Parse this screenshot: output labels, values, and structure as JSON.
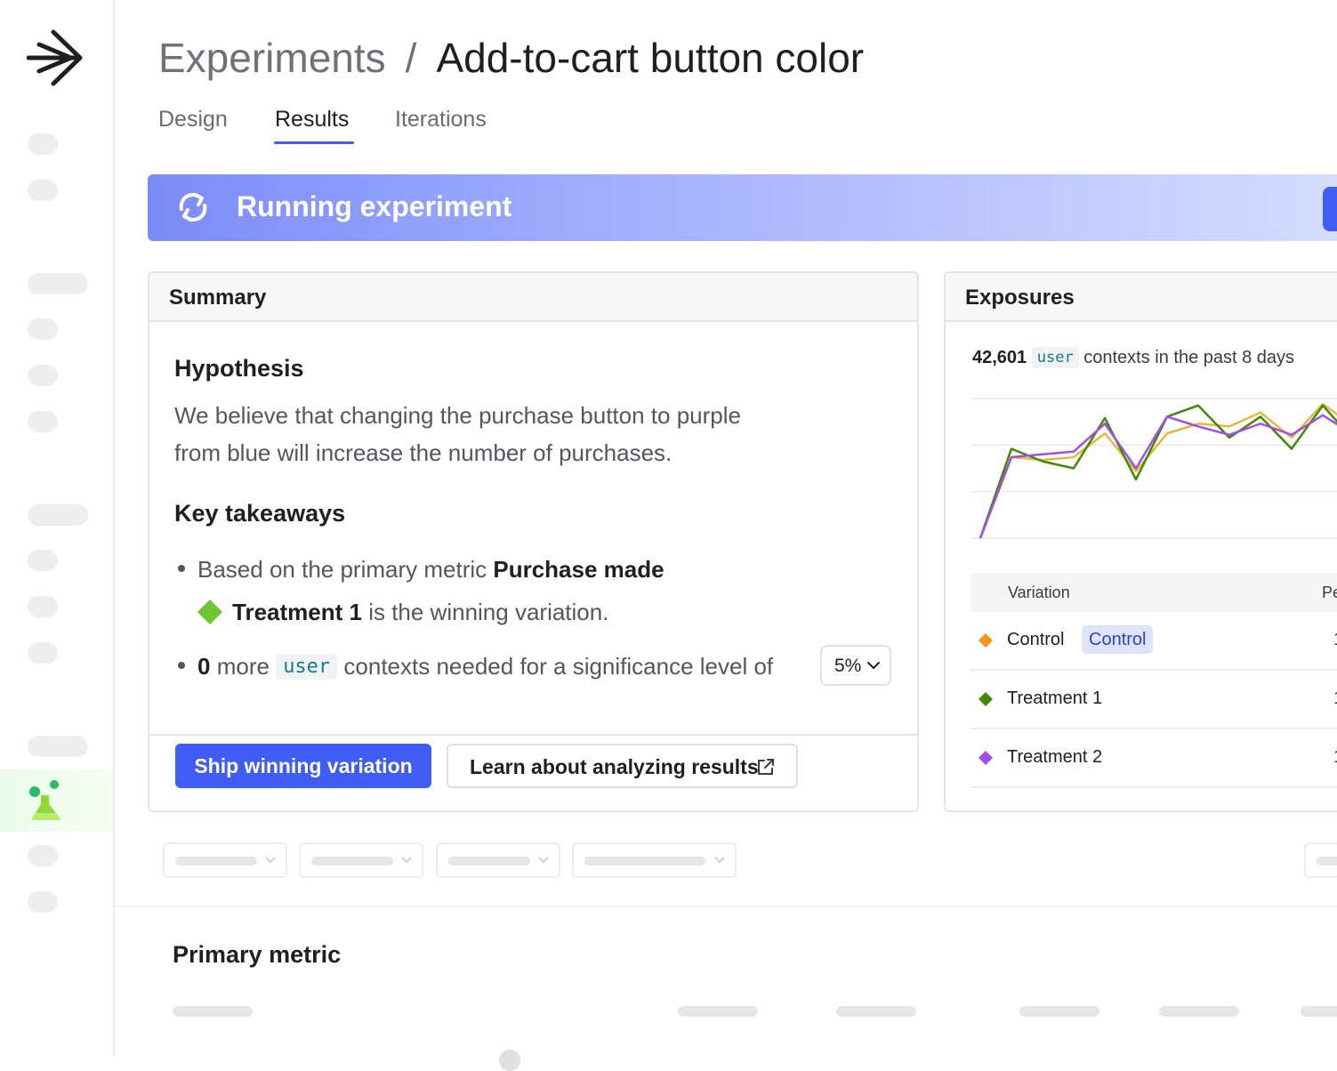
{
  "page": {
    "breadcrumb": {
      "parent": "Experiments",
      "separator": "/",
      "current": "Add-to-cart button color"
    },
    "tabs": [
      {
        "label": "Design",
        "active": false
      },
      {
        "label": "Results",
        "active": true
      },
      {
        "label": "Iterations",
        "active": false
      }
    ],
    "status_banner": {
      "title": "Running experiment",
      "icon": "sync-icon"
    }
  },
  "summary": {
    "title": "Summary",
    "hypothesis_heading": "Hypothesis",
    "hypothesis_line1": "We believe that changing the purchase button to purple",
    "hypothesis_line2": "from blue will increase the number of purchases.",
    "takeaways_heading": "Key takeaways",
    "takeaway1_prefix": "Based on the primary metric",
    "takeaway1_metric": "Purchase made",
    "takeaway1_variation": "Treatment 1",
    "takeaway1_suffix": "is the winning variation.",
    "takeaway2_count": "0",
    "takeaway2_more": "more",
    "takeaway2_context": "user",
    "takeaway2_suffix": "contexts needed for a significance level of",
    "significance_level": "5%",
    "ship_button": "Ship winning variation",
    "learn_button": "Learn about analyzing results"
  },
  "exposures": {
    "title": "Exposures",
    "count": "42,601",
    "context_kind": "user",
    "period_text": "contexts in the past 8 days",
    "table_headers": [
      "Variation",
      "Pe"
    ],
    "variations": [
      {
        "name": "Control",
        "badge": "Control",
        "color": "#f7951c",
        "value_truncated": "1"
      },
      {
        "name": "Treatment 1",
        "badge": "",
        "color": "#3f8a06",
        "value_truncated": "1"
      },
      {
        "name": "Treatment 2",
        "badge": "",
        "color": "#a24ee5",
        "value_truncated": "1"
      }
    ]
  },
  "chart_data": {
    "type": "line",
    "title": "",
    "xlabel": "",
    "ylabel": "",
    "grid": true,
    "ylim": [
      0,
      100
    ],
    "x": [
      0,
      1,
      2,
      3,
      4,
      5,
      6,
      7,
      8,
      9,
      10,
      11,
      12
    ],
    "series": [
      {
        "name": "Control",
        "color": "#e6b93a",
        "values": [
          0,
          58,
          56,
          58,
          75,
          48,
          75,
          82,
          80,
          90,
          72,
          96,
          80
        ]
      },
      {
        "name": "Treatment 1",
        "color": "#3f8a06",
        "values": [
          0,
          64,
          55,
          50,
          86,
          42,
          87,
          95,
          72,
          87,
          64,
          95,
          70
        ]
      },
      {
        "name": "Treatment 2",
        "color": "#a24ee5",
        "values": [
          0,
          58,
          60,
          62,
          82,
          50,
          87,
          80,
          74,
          82,
          74,
          88,
          74
        ]
      }
    ]
  },
  "lower": {
    "primary_metric_heading": "Primary metric"
  },
  "theme": {
    "accent": "#3f5cf5",
    "winner_color": "#6cc531"
  }
}
